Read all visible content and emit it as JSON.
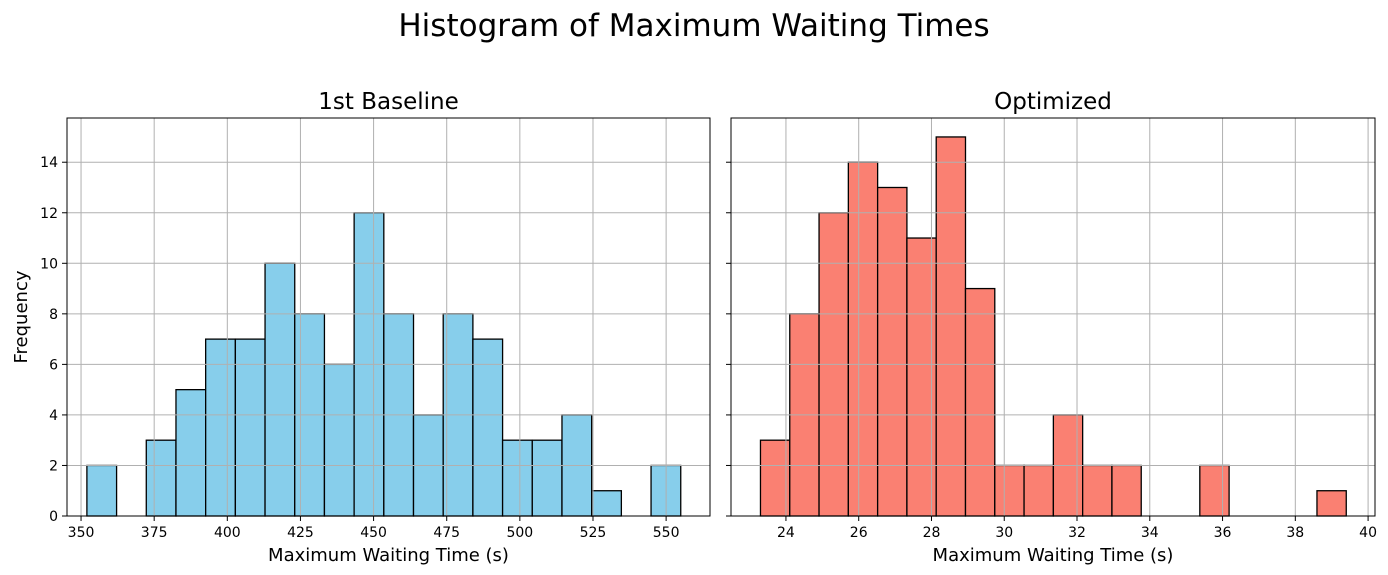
{
  "figure": {
    "suptitle": "Histogram of Maximum Waiting Times",
    "grid_color": "#b0b0b0",
    "edge_color": "#000000"
  },
  "chart_data": [
    {
      "type": "histogram",
      "title": "1st Baseline",
      "xlabel": "Maximum Waiting Time (s)",
      "ylabel": "Frequency",
      "color": "#87ceeb",
      "bin_start": 352.0,
      "bin_width": 10.15,
      "counts": [
        2,
        0,
        3,
        5,
        7,
        7,
        10,
        8,
        6,
        12,
        8,
        4,
        8,
        7,
        3,
        3,
        4,
        1,
        0,
        2
      ],
      "xlim": [
        345.2,
        565.0
      ],
      "ylim": [
        0,
        15.75
      ],
      "xticks": [
        350,
        375,
        400,
        425,
        450,
        475,
        500,
        525,
        550
      ],
      "yticks": [
        0,
        2,
        4,
        6,
        8,
        10,
        12,
        14
      ],
      "grid": true
    },
    {
      "type": "histogram",
      "title": "Optimized",
      "xlabel": "Maximum Waiting Time (s)",
      "ylabel": "",
      "color": "#fa8072",
      "bin_start": 23.3,
      "bin_width": 0.805,
      "counts": [
        3,
        8,
        12,
        14,
        13,
        11,
        15,
        9,
        2,
        2,
        4,
        2,
        2,
        0,
        0,
        2,
        0,
        0,
        0,
        1
      ],
      "xlim": [
        22.49,
        40.19
      ],
      "ylim": [
        0,
        15.75
      ],
      "xticks": [
        24,
        26,
        28,
        30,
        32,
        34,
        36,
        38,
        40
      ],
      "yticks": [
        0,
        2,
        4,
        6,
        8,
        10,
        12,
        14
      ],
      "grid": true
    }
  ]
}
